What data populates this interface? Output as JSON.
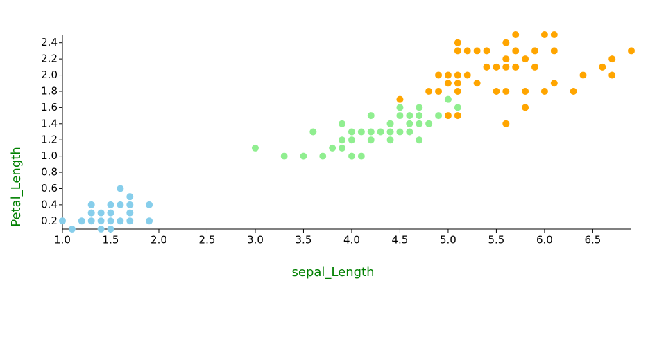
{
  "chart_data": {
    "type": "scatter",
    "x_label": "sepal_Length",
    "y_label": "Petal_Length",
    "xlim": [
      1.0,
      6.9
    ],
    "ylim": [
      0.1,
      2.5
    ],
    "xticks": [
      {
        "value": 1,
        "label": "1.0"
      },
      1.5,
      {
        "value": 2,
        "label": "2.0"
      },
      2.5,
      {
        "value": 3,
        "label": "3.0"
      },
      3.5,
      {
        "value": 4,
        "label": "4.0"
      },
      4.5,
      {
        "value": 5,
        "label": "5.0"
      },
      5.5,
      {
        "value": 6,
        "label": "6.0"
      },
      6.5
    ],
    "yticks": [
      0.2,
      0.4,
      0.6,
      0.8,
      {
        "value": 1,
        "label": "1.0"
      },
      1.2,
      1.4,
      1.6,
      1.8,
      {
        "value": 2,
        "label": "2.0"
      },
      2.2,
      2.4
    ],
    "grid": false,
    "series": [
      {
        "color": "#87ceeb",
        "x": [
          1.0,
          1.1,
          1.2,
          1.3,
          1.3,
          1.3,
          1.4,
          1.4,
          1.4,
          1.5,
          1.5,
          1.5,
          1.5,
          1.6,
          1.6,
          1.6,
          1.7,
          1.7,
          1.7,
          1.7,
          1.9,
          1.9
        ],
        "values": [
          0.2,
          0.1,
          0.2,
          0.2,
          0.3,
          0.4,
          0.1,
          0.2,
          0.3,
          0.1,
          0.2,
          0.3,
          0.4,
          0.2,
          0.4,
          0.6,
          0.2,
          0.3,
          0.4,
          0.5,
          0.2,
          0.4
        ]
      },
      {
        "color": "#90ee90",
        "x": [
          3.0,
          3.3,
          3.5,
          3.6,
          3.7,
          3.8,
          3.9,
          3.9,
          3.9,
          4.0,
          4.0,
          4.0,
          4.1,
          4.1,
          4.2,
          4.2,
          4.2,
          4.3,
          4.4,
          4.4,
          4.4,
          4.5,
          4.5,
          4.5,
          4.6,
          4.6,
          4.6,
          4.7,
          4.7,
          4.7,
          4.7,
          4.8,
          4.9,
          5.0,
          5.1
        ],
        "values": [
          1.1,
          1.0,
          1.0,
          1.3,
          1.0,
          1.1,
          1.1,
          1.2,
          1.4,
          1.0,
          1.2,
          1.3,
          1.0,
          1.3,
          1.2,
          1.3,
          1.5,
          1.3,
          1.2,
          1.3,
          1.4,
          1.3,
          1.5,
          1.6,
          1.3,
          1.4,
          1.5,
          1.2,
          1.4,
          1.5,
          1.6,
          1.4,
          1.5,
          1.7,
          1.6
        ]
      },
      {
        "color": "#ffa500",
        "x": [
          4.5,
          4.8,
          4.9,
          4.9,
          5.0,
          5.0,
          5.0,
          5.1,
          5.1,
          5.1,
          5.1,
          5.1,
          5.1,
          5.2,
          5.2,
          5.3,
          5.3,
          5.4,
          5.4,
          5.5,
          5.5,
          5.6,
          5.6,
          5.6,
          5.6,
          5.6,
          5.7,
          5.7,
          5.7,
          5.8,
          5.8,
          5.8,
          5.9,
          5.9,
          6.0,
          6.0,
          6.1,
          6.1,
          6.1,
          6.3,
          6.4,
          6.6,
          6.7,
          6.7,
          6.9
        ],
        "values": [
          1.7,
          1.8,
          1.8,
          2.0,
          1.5,
          1.9,
          2.0,
          1.5,
          1.8,
          1.9,
          2.0,
          2.3,
          2.4,
          2.0,
          2.3,
          1.9,
          2.3,
          2.1,
          2.3,
          1.8,
          2.1,
          1.4,
          1.8,
          2.1,
          2.2,
          2.4,
          2.1,
          2.3,
          2.5,
          1.6,
          1.8,
          2.2,
          2.1,
          2.3,
          1.8,
          2.5,
          1.9,
          2.3,
          2.5,
          1.8,
          2.0,
          2.1,
          2.0,
          2.2,
          2.3
        ]
      }
    ]
  }
}
